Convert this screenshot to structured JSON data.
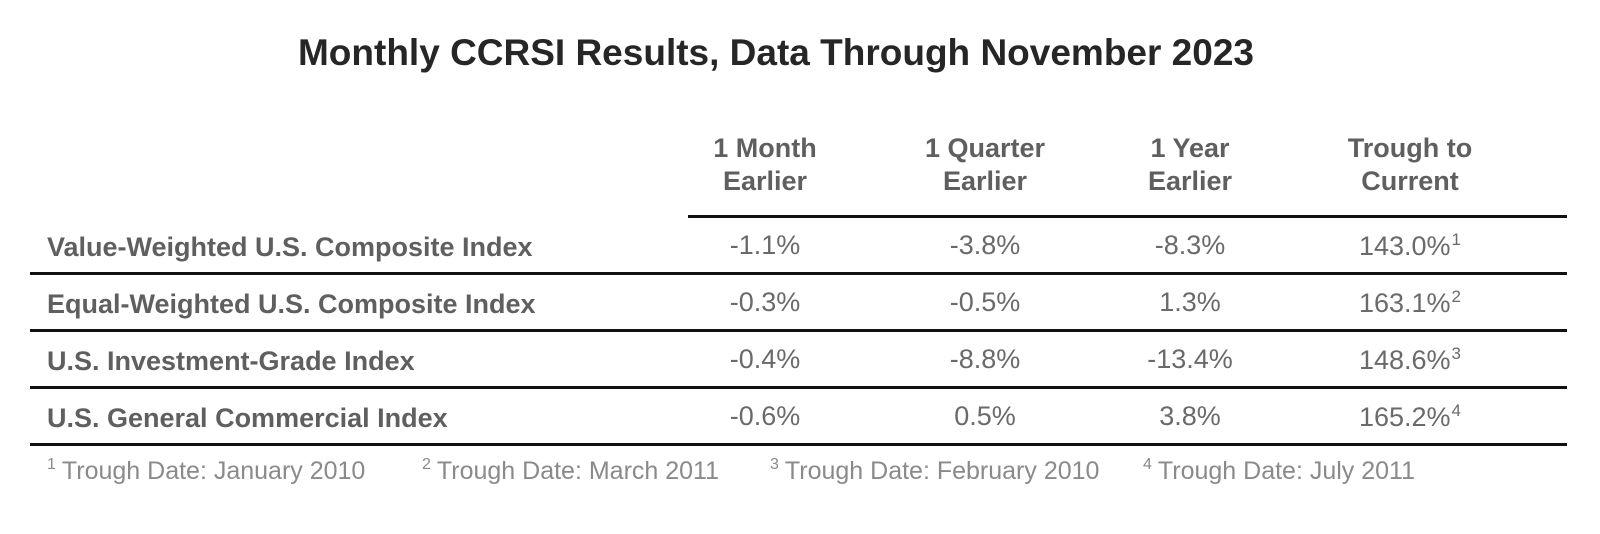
{
  "chart_data": {
    "type": "table",
    "title": "Monthly CCRSI Results, Data Through November 2023",
    "columns": [
      {
        "line1": "1 Month",
        "line2": "Earlier"
      },
      {
        "line1": "1 Quarter",
        "line2": "Earlier"
      },
      {
        "line1": "1 Year",
        "line2": "Earlier"
      },
      {
        "line1": "Trough to",
        "line2": "Current"
      }
    ],
    "rows": [
      {
        "label": "Value-Weighted U.S. Composite Index",
        "values": [
          "-1.1%",
          "-3.8%",
          "-8.3%",
          "143.0%"
        ],
        "note": "1"
      },
      {
        "label": "Equal-Weighted U.S. Composite Index",
        "values": [
          "-0.3%",
          "-0.5%",
          "1.3%",
          "163.1%"
        ],
        "note": "2"
      },
      {
        "label": "U.S. Investment-Grade Index",
        "values": [
          "-0.4%",
          "-8.8%",
          "-13.4%",
          "148.6%"
        ],
        "note": "3"
      },
      {
        "label": "U.S. General Commercial Index",
        "values": [
          "-0.6%",
          "0.5%",
          "3.8%",
          "165.2%"
        ],
        "note": "4"
      }
    ],
    "footnotes": [
      {
        "mark": "1",
        "text": "Trough Date: January 2010"
      },
      {
        "mark": "2",
        "text": "Trough Date: March 2011"
      },
      {
        "mark": "3",
        "text": "Trough Date: February 2010"
      },
      {
        "mark": "4",
        "text": "Trough Date: July 2011"
      }
    ]
  }
}
